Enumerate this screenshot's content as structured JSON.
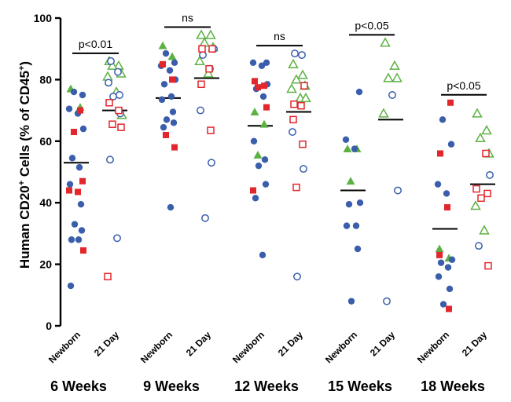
{
  "chart_data": {
    "type": "scatter",
    "ylabel": "Human CD20+ Cells (% of CD45+)",
    "ylabel_parts": {
      "a": "Human CD20",
      "sup1": "+",
      "b": " Cells (% of CD45",
      "sup2": "+",
      "c": ")"
    },
    "ylim": [
      0,
      100
    ],
    "yticks": [
      "0",
      "20",
      "40",
      "60",
      "80",
      "100"
    ],
    "group_labels": [
      "Newborn",
      "21 Day"
    ],
    "groups": [
      {
        "name": "6 Weeks",
        "comparison": "p<0.01",
        "newborn": {
          "mean": 53,
          "circles": [
            76,
            75,
            70.5,
            69,
            64,
            54.5,
            51.5,
            46,
            39.5,
            33,
            31,
            28,
            28,
            13
          ],
          "squares": [
            70,
            63,
            47,
            44,
            43.5,
            24.5
          ],
          "triangles": [
            77,
            71
          ]
        },
        "day21": {
          "mean": 70,
          "circles": [
            86,
            82.5,
            79,
            75,
            74.5,
            69,
            54,
            28.5
          ],
          "squares": [
            72.5,
            70,
            65.5,
            64.5,
            16
          ],
          "triangles": [
            86,
            84.5,
            84.5,
            82,
            81,
            76,
            68.5
          ]
        }
      },
      {
        "name": "9 Weeks",
        "comparison": "ns",
        "newborn": {
          "mean": 74,
          "circles": [
            88.5,
            85.5,
            84.5,
            83,
            80,
            78.5,
            74.5,
            73.5,
            69.5,
            67,
            66,
            64.5,
            38.5
          ],
          "squares": [
            85,
            80,
            62,
            58
          ],
          "triangles": [
            91,
            87.5
          ]
        },
        "day21": {
          "mean": 80.5,
          "circles": [
            90,
            88,
            83.5,
            70,
            53,
            35
          ],
          "squares": [
            90,
            90,
            83.5,
            78.5,
            63.5
          ],
          "triangles": [
            94.5,
            94.5,
            92,
            90.5,
            86,
            82
          ]
        }
      },
      {
        "name": "12 Weeks",
        "comparison": "ns",
        "newborn": {
          "mean": 65,
          "circles": [
            85.5,
            85.5,
            84.5,
            78.5,
            77,
            74.5,
            60,
            54,
            52,
            46,
            41.5,
            23
          ],
          "squares": [
            79.5,
            78,
            77.5,
            71,
            44
          ],
          "triangles": [
            69.5,
            65.5,
            55.5
          ]
        },
        "day21": {
          "mean": 69.5,
          "circles": [
            88.5,
            88,
            63,
            51,
            16
          ],
          "squares": [
            78,
            72,
            71.5,
            67,
            59,
            45
          ],
          "triangles": [
            85,
            81.5,
            80,
            78,
            77,
            74,
            74
          ]
        }
      },
      {
        "name": "15 Weeks",
        "comparison": "p<0.05",
        "newborn": {
          "mean": 44,
          "circles": [
            76,
            60.5,
            57.5,
            40,
            39.5,
            32.5,
            32.5,
            25,
            8
          ],
          "squares": [],
          "triangles": [
            57.5,
            57.5,
            47
          ]
        },
        "day21": {
          "mean": 67,
          "circles": [
            75,
            44,
            8
          ],
          "squares": [],
          "triangles": [
            92,
            84.5,
            80.5,
            80.5,
            69
          ]
        }
      },
      {
        "name": "18 Weeks",
        "comparison": "p<0.05",
        "newborn": {
          "mean": 31.5,
          "circles": [
            67,
            59,
            46,
            43,
            21.5,
            20.5,
            19,
            16,
            12,
            7
          ],
          "squares": [
            72.5,
            56,
            38.5,
            23,
            5.5
          ],
          "triangles": [
            25,
            22
          ]
        },
        "day21": {
          "mean": 46,
          "circles": [
            49,
            26
          ],
          "squares": [
            56,
            44.5,
            43,
            41.5,
            19.5
          ],
          "triangles": [
            69,
            63.5,
            61,
            56,
            39,
            31
          ]
        }
      }
    ],
    "colors": {
      "circle": "#3a5eab",
      "square": "#e2262b",
      "triangle": "#5db143"
    }
  }
}
